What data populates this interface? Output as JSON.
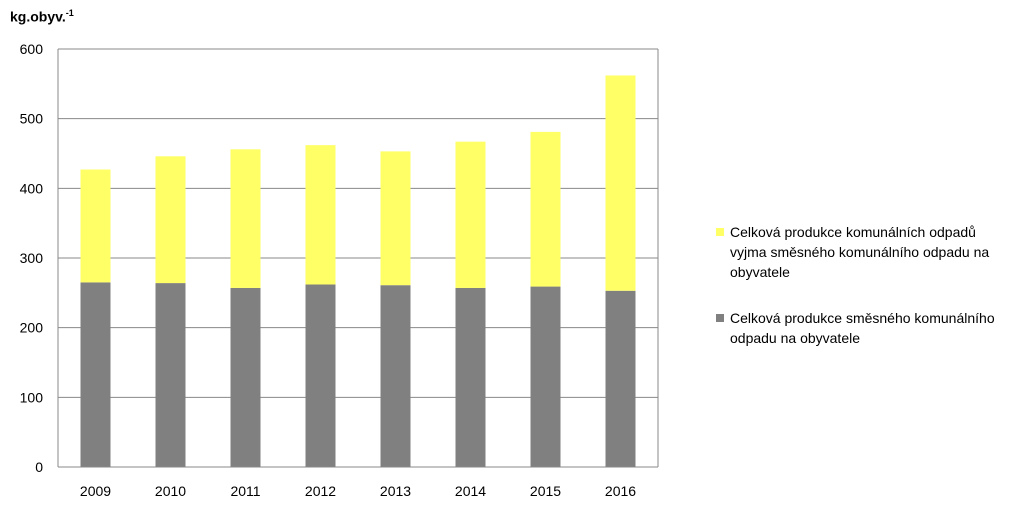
{
  "chart_data": {
    "type": "bar",
    "stacked": true,
    "ylabel": "kg.obyv.",
    "ylabel_superscript": "-1",
    "categories": [
      "2009",
      "2010",
      "2011",
      "2012",
      "2013",
      "2014",
      "2015",
      "2016"
    ],
    "series": [
      {
        "name": "Celková produkce směsného komunálního odpadu na obyvatele",
        "color": "#808080",
        "values": [
          265,
          264,
          257,
          262,
          261,
          257,
          259,
          253
        ]
      },
      {
        "name": "Celková produkce komunálních odpadů vyjma směsného komunálního odpadu na obyvatele",
        "color": "#ffff66",
        "values": [
          162,
          182,
          199,
          200,
          192,
          210,
          222,
          309
        ]
      }
    ],
    "ylim": [
      0,
      600
    ],
    "yticks": [
      "0",
      "100",
      "200",
      "300",
      "400",
      "500",
      "600"
    ],
    "grid": true,
    "legend_position": "right",
    "legend_order": [
      1,
      0
    ]
  }
}
